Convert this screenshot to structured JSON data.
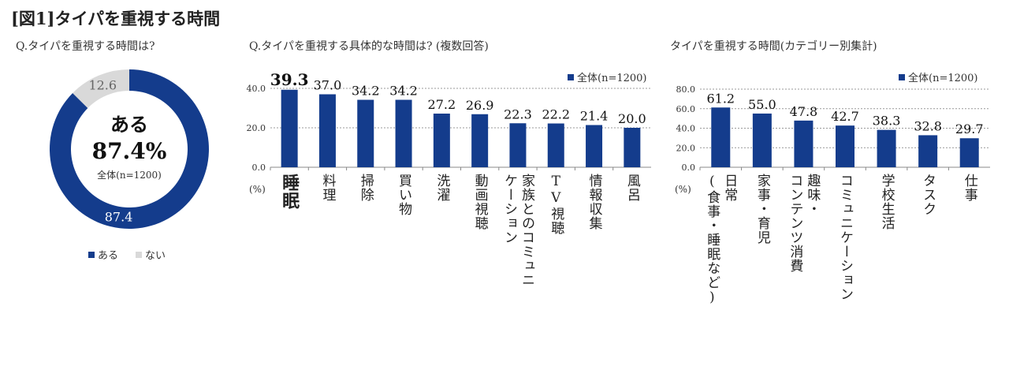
{
  "title": "[図1]タイパを重視する時間",
  "colors": {
    "bar": "#143c8c",
    "none": "#d9d9d9"
  },
  "chart_data": [
    {
      "type": "pie",
      "subtitle": "Q.タイパを重視する時間は?",
      "center_label": "ある",
      "center_value": "87.4%",
      "center_note": "全体(n=1200)",
      "slices": [
        {
          "name": "ある",
          "value": 87.4,
          "label": "87.4",
          "color": "#143c8c"
        },
        {
          "name": "ない",
          "value": 12.6,
          "label": "12.6",
          "color": "#d9d9d9"
        }
      ],
      "legend": [
        "ある",
        "ない"
      ]
    },
    {
      "type": "bar",
      "subtitle": "Q.タイパを重視する具体的な時間は? (複数回答)",
      "legend": "全体(n=1200)",
      "unit": "(%)",
      "ylim": [
        0,
        40
      ],
      "yticks": [
        "0.0",
        "20.0",
        "40.0"
      ],
      "categories": [
        "睡眠",
        "料理",
        "掃除",
        "買い物",
        "洗濯",
        "動画視聴",
        "家族とのコミュニケーション",
        "TV視聴",
        "情報収集",
        "風呂"
      ],
      "category_lines": [
        [
          "睡眠"
        ],
        [
          "料理"
        ],
        [
          "掃除"
        ],
        [
          "買い物"
        ],
        [
          "洗濯"
        ],
        [
          "動画視聴"
        ],
        [
          "家族とのコミュニ",
          "ケーション"
        ],
        [
          "TV視聴"
        ],
        [
          "情報収集"
        ],
        [
          "風呂"
        ]
      ],
      "values": [
        39.3,
        37.0,
        34.2,
        34.2,
        27.2,
        26.9,
        22.3,
        22.2,
        21.4,
        20.0
      ],
      "value_labels": [
        "39.3",
        "37.0",
        "34.2",
        "34.2",
        "27.2",
        "26.9",
        "22.3",
        "22.2",
        "21.4",
        "20.0"
      ]
    },
    {
      "type": "bar",
      "subtitle": "タイパを重視する時間(カテゴリー別集計)",
      "legend": "全体(n=1200)",
      "unit": "(%)",
      "ylim": [
        0,
        80
      ],
      "yticks": [
        "0.0",
        "20.0",
        "40.0",
        "60.0",
        "80.0"
      ],
      "categories": [
        "日常(食事・睡眠など)",
        "家事・育児",
        "趣味・コンテンツ消費",
        "コミュニケーション",
        "学校生活",
        "タスク",
        "仕事"
      ],
      "category_lines": [
        [
          "日常",
          "(食事・睡眠など)"
        ],
        [
          "家事・育児"
        ],
        [
          "趣味・",
          "コンテンツ消費"
        ],
        [
          "コミュニケーション"
        ],
        [
          "学校生活"
        ],
        [
          "タスク"
        ],
        [
          "仕事"
        ]
      ],
      "values": [
        61.2,
        55.0,
        47.8,
        42.7,
        38.3,
        32.8,
        29.7
      ],
      "value_labels": [
        "61.2",
        "55.0",
        "47.8",
        "42.7",
        "38.3",
        "32.8",
        "29.7"
      ]
    }
  ]
}
